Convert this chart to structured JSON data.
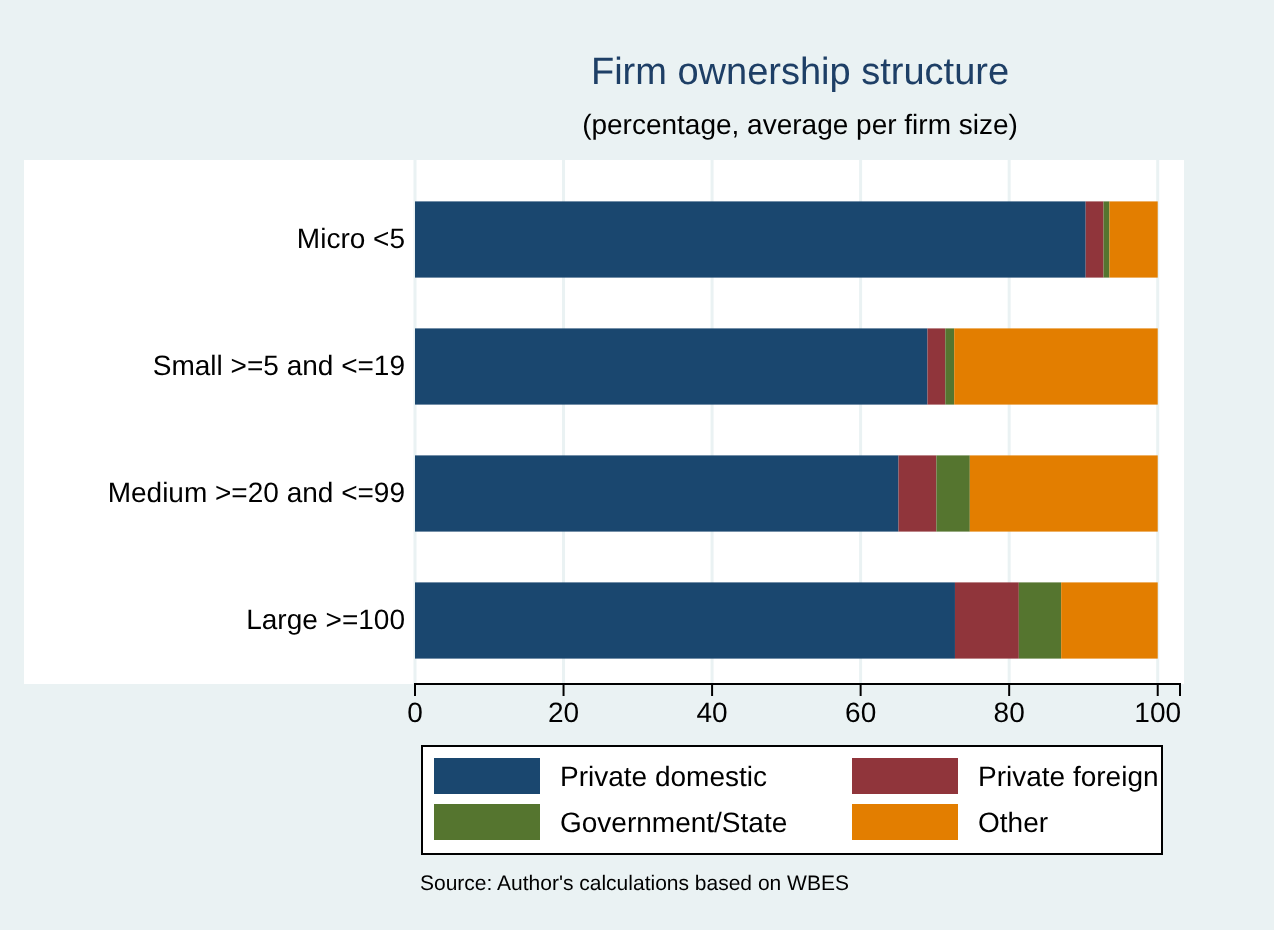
{
  "chart_data": {
    "type": "bar",
    "orientation": "horizontal",
    "stacked": true,
    "title": "Firm ownership structure",
    "subtitle": "(percentage, average per firm size)",
    "categories": [
      "Micro <5",
      "Small >=5 and <=19",
      "Medium >=20 and <=99",
      "Large >=100"
    ],
    "series": [
      {
        "name": "Private domestic",
        "color": "#1a476f",
        "values": [
          90.3,
          69.0,
          65.1,
          72.7
        ]
      },
      {
        "name": "Private foreign",
        "color": "#90353b",
        "values": [
          2.4,
          2.4,
          5.1,
          8.6
        ]
      },
      {
        "name": "Government/State",
        "color": "#55752f",
        "values": [
          0.8,
          1.2,
          4.5,
          5.7
        ]
      },
      {
        "name": "Other",
        "color": "#e37e00",
        "values": [
          6.5,
          27.4,
          25.3,
          13.0
        ]
      }
    ],
    "xlim": [
      0,
      103
    ],
    "xticks": [
      0,
      20,
      40,
      60,
      80,
      100
    ],
    "grid": "x",
    "legend": "bottom",
    "annotations": [
      "Source: Author's calculations based on WBES"
    ]
  }
}
